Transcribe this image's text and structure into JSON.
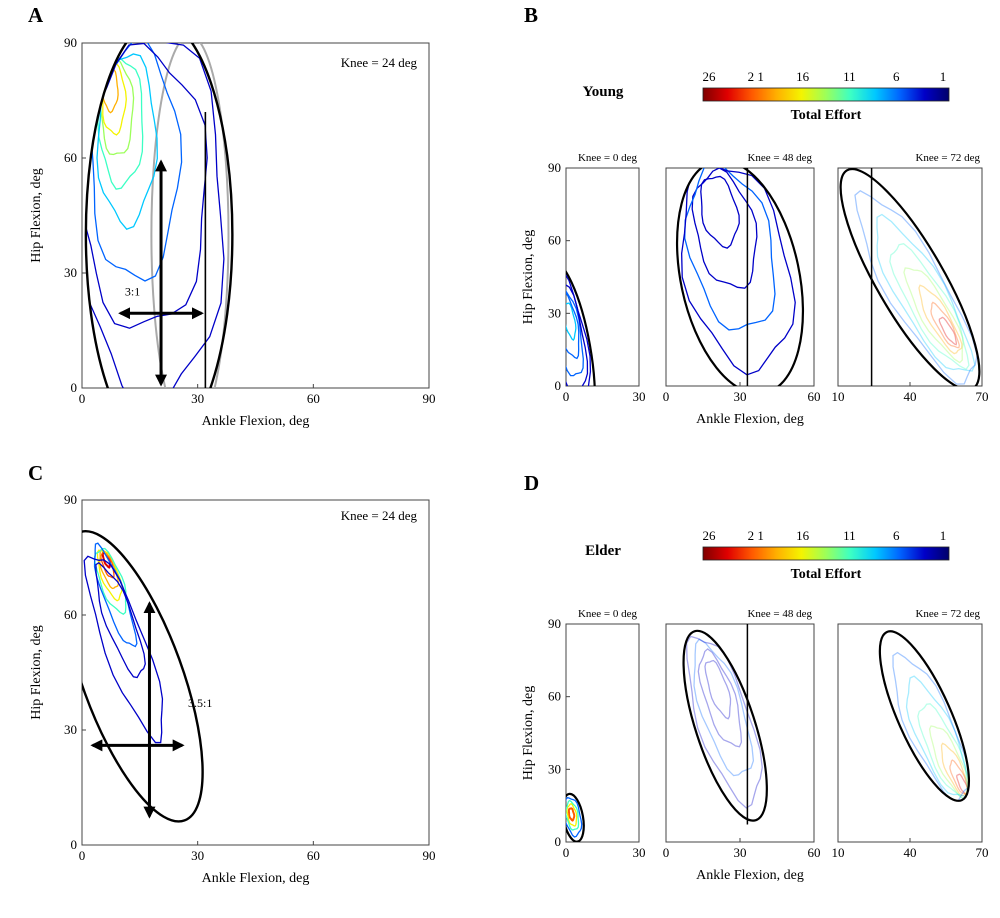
{
  "colormap": [
    "#7f0000",
    "#e00000",
    "#ff5a00",
    "#ffb000",
    "#f4f400",
    "#9cff5a",
    "#3cffc4",
    "#00c8ff",
    "#0064ff",
    "#0000c8",
    "#00006a"
  ],
  "colorbar": {
    "title": "Total Effort",
    "ticks": [
      "26",
      "2 1",
      "16",
      "11",
      "6",
      "1"
    ]
  },
  "chart_data": [
    {
      "panel": "A",
      "type": "heatmap",
      "annotation": "Knee = 24 deg",
      "xlabel": "Ankle Flexion, deg",
      "ylabel": "Hip Flexion, deg",
      "xlim": [
        0,
        90
      ],
      "ylim": [
        0,
        90
      ],
      "xticks": [
        "0",
        "30",
        "60",
        "90"
      ],
      "yticks": [
        "0",
        "30",
        "60",
        "90"
      ],
      "ellipse": {
        "cx": 20,
        "cy": 40,
        "rx": 19,
        "ry": 56,
        "angle_deg": 0
      },
      "ratio_label": "3:1",
      "arrows": {
        "horizontal": [
          10,
          31,
          19.5
        ],
        "vertical": [
          20.5,
          1,
          59
        ]
      },
      "boundary_x": 32
    },
    {
      "panel": "B",
      "type": "heatmap",
      "group": "Young",
      "xlabel": "Ankle Flexion, deg",
      "ylabel": "Hip Flexion, deg",
      "subplots": [
        {
          "title": "Knee = 0 deg",
          "xlim": [
            0,
            30
          ],
          "ylim": [
            0,
            90
          ],
          "xticks": [
            "0",
            "30"
          ],
          "yticks": [
            "0",
            "30",
            "60",
            "90"
          ],
          "ellipse": {
            "cx": 0,
            "cy": 15,
            "rx": 10,
            "ry": 38,
            "angle_deg": -10
          }
        },
        {
          "title": "Knee = 48 deg",
          "xlim": [
            0,
            60
          ],
          "ylim": [
            0,
            90
          ],
          "xticks": [
            "0",
            "30",
            "60"
          ],
          "yticks": [],
          "ellipse": {
            "cx": 30,
            "cy": 45,
            "rx": 24,
            "ry": 49,
            "angle_deg": -12
          },
          "boundary_x": 33
        },
        {
          "title": "Knee = 72 deg",
          "xlim": [
            10,
            70
          ],
          "ylim": [
            0,
            90
          ],
          "xticks": [
            "10",
            "40",
            "70"
          ],
          "yticks": [],
          "ellipse": {
            "cx": 40,
            "cy": 44,
            "rx": 14,
            "ry": 52,
            "angle_deg": -30
          },
          "boundary_x": 24
        }
      ]
    },
    {
      "panel": "C",
      "type": "heatmap",
      "annotation": "Knee = 24 deg",
      "xlabel": "Ankle Flexion, deg",
      "ylabel": "Hip Flexion, deg",
      "xlim": [
        0,
        90
      ],
      "ylim": [
        0,
        90
      ],
      "xticks": [
        "0",
        "30",
        "60",
        "90"
      ],
      "yticks": [
        "0",
        "30",
        "60",
        "90"
      ],
      "ellipse": {
        "cx": 13,
        "cy": 44,
        "rx": 13,
        "ry": 40,
        "angle_deg": -20
      },
      "ratio_label": "3.5:1",
      "arrows": {
        "horizontal": [
          1.5,
          26,
          26
        ],
        "vertical": [
          17.5,
          7.5,
          63
        ]
      }
    },
    {
      "panel": "D",
      "type": "heatmap",
      "group": "Elder",
      "xlabel": "Ankle Flexion, deg",
      "ylabel": "Hip Flexion, deg",
      "subplots": [
        {
          "title": "Knee = 0 deg",
          "xlim": [
            0,
            30
          ],
          "ylim": [
            0,
            90
          ],
          "xticks": [
            "0",
            "30"
          ],
          "yticks": [
            "0",
            "30",
            "60",
            "90"
          ],
          "ellipse": {
            "cx": 3,
            "cy": 10,
            "rx": 4,
            "ry": 10,
            "angle_deg": -10
          }
        },
        {
          "title": "Knee = 48 deg",
          "xlim": [
            0,
            60
          ],
          "ylim": [
            0,
            90
          ],
          "xticks": [
            "0",
            "30",
            "60"
          ],
          "yticks": [],
          "ellipse": {
            "cx": 24,
            "cy": 48,
            "rx": 12,
            "ry": 41,
            "angle_deg": -18
          },
          "boundary_x": 33
        },
        {
          "title": "Knee = 72 deg",
          "xlim": [
            10,
            70
          ],
          "ylim": [
            0,
            90
          ],
          "xticks": [
            "10",
            "40",
            "70"
          ],
          "yticks": [],
          "ellipse": {
            "cx": 46,
            "cy": 52,
            "rx": 11,
            "ry": 38,
            "angle_deg": -24
          }
        }
      ]
    }
  ]
}
